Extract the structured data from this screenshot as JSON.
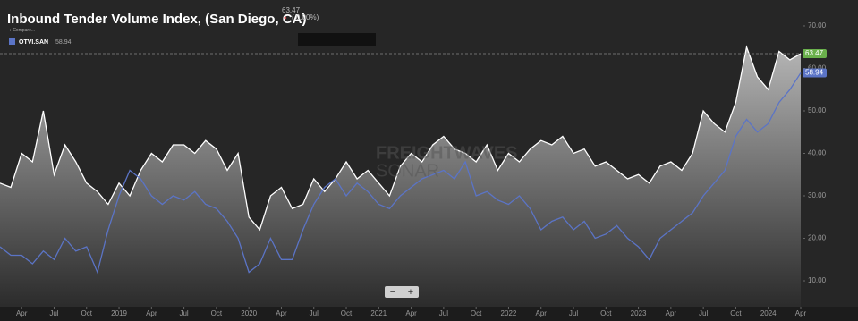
{
  "chart_data": {
    "type": "line",
    "title": "Inbound Tender Volume Index, (San Diego, CA)",
    "last_value_label": "63.47",
    "change_label": "( 0.00%)",
    "compare_label": "Compare...",
    "watermark": [
      "FREIGHTWAVES",
      "SONAR"
    ],
    "zoom_buttons": [
      "−",
      "+"
    ],
    "x": [
      "2018-02",
      "2018-03",
      "2018-04",
      "2018-05",
      "2018-06",
      "2018-07",
      "2018-08",
      "2018-09",
      "2018-10",
      "2018-11",
      "2018-12",
      "2019-01",
      "2019-02",
      "2019-03",
      "2019-04",
      "2019-05",
      "2019-06",
      "2019-07",
      "2019-08",
      "2019-09",
      "2019-10",
      "2019-11",
      "2019-12",
      "2020-01",
      "2020-02",
      "2020-03",
      "2020-04",
      "2020-05",
      "2020-06",
      "2020-07",
      "2020-08",
      "2020-09",
      "2020-10",
      "2020-11",
      "2020-12",
      "2021-01",
      "2021-02",
      "2021-03",
      "2021-04",
      "2021-05",
      "2021-06",
      "2021-07",
      "2021-08",
      "2021-09",
      "2021-10",
      "2021-11",
      "2021-12",
      "2022-01",
      "2022-02",
      "2022-03",
      "2022-04",
      "2022-05",
      "2022-06",
      "2022-07",
      "2022-08",
      "2022-09",
      "2022-10",
      "2022-11",
      "2022-12",
      "2023-01",
      "2023-02",
      "2023-03",
      "2023-04",
      "2023-05",
      "2023-06",
      "2023-07",
      "2023-08",
      "2023-09",
      "2023-10",
      "2023-11",
      "2023-12",
      "2024-01",
      "2024-02",
      "2024-03",
      "2024-04"
    ],
    "xlim": [
      "2018-02",
      "2024-04"
    ],
    "xticks": [
      {
        "value": "2018-04",
        "label": "Apr"
      },
      {
        "value": "2018-07",
        "label": "Jul"
      },
      {
        "value": "2018-10",
        "label": "Oct"
      },
      {
        "value": "2019-01",
        "label": "2019"
      },
      {
        "value": "2019-04",
        "label": "Apr"
      },
      {
        "value": "2019-07",
        "label": "Jul"
      },
      {
        "value": "2019-10",
        "label": "Oct"
      },
      {
        "value": "2020-01",
        "label": "2020"
      },
      {
        "value": "2020-04",
        "label": "Apr"
      },
      {
        "value": "2020-07",
        "label": "Jul"
      },
      {
        "value": "2020-10",
        "label": "Oct"
      },
      {
        "value": "2021-01",
        "label": "2021"
      },
      {
        "value": "2021-04",
        "label": "Apr"
      },
      {
        "value": "2021-07",
        "label": "Jul"
      },
      {
        "value": "2021-10",
        "label": "Oct"
      },
      {
        "value": "2022-01",
        "label": "2022"
      },
      {
        "value": "2022-04",
        "label": "Apr"
      },
      {
        "value": "2022-07",
        "label": "Jul"
      },
      {
        "value": "2022-10",
        "label": "Oct"
      },
      {
        "value": "2023-01",
        "label": "2023"
      },
      {
        "value": "2023-04",
        "label": "Apr"
      },
      {
        "value": "2023-07",
        "label": "Jul"
      },
      {
        "value": "2023-10",
        "label": "Oct"
      },
      {
        "value": "2024-01",
        "label": "2024"
      },
      {
        "value": "2024-04",
        "label": "Apr"
      }
    ],
    "ylim": [
      3.9,
      76.1
    ],
    "yticks": [
      {
        "value": 10,
        "label": "10.00"
      },
      {
        "value": 20,
        "label": "20.00"
      },
      {
        "value": 30,
        "label": "30.00"
      },
      {
        "value": 40,
        "label": "40.00"
      },
      {
        "value": 50,
        "label": "50.00"
      },
      {
        "value": 60,
        "label": "60.00"
      },
      {
        "value": 70,
        "label": "70.00"
      }
    ],
    "series": [
      {
        "color": "#ffffff",
        "label_color": "#6ab04c",
        "values": [
          33,
          32,
          40,
          38,
          50,
          35,
          42,
          38,
          33,
          31,
          28,
          33,
          30,
          36,
          40,
          38,
          42,
          42,
          40,
          43,
          41,
          36,
          40,
          25,
          22,
          30,
          32,
          27,
          28,
          34,
          31,
          34,
          38,
          34,
          36,
          33,
          30,
          37,
          40,
          38,
          42,
          44,
          41,
          40,
          38,
          42,
          36,
          40,
          38,
          41,
          43,
          42,
          44,
          40,
          41,
          37,
          38,
          36,
          34,
          35,
          33,
          37,
          38,
          36,
          40,
          50,
          47,
          45,
          52,
          65,
          58,
          55,
          64,
          62,
          63.47
        ]
      },
      {
        "name": "OTVI.SAN",
        "color": "#5b74c6",
        "label_color": "#5b74c6",
        "values": [
          18,
          16,
          16,
          14,
          17,
          15,
          20,
          17,
          18,
          12,
          22,
          30,
          36,
          34,
          30,
          28,
          30,
          29,
          31,
          28,
          27,
          24,
          20,
          12,
          14,
          20,
          15,
          15,
          22,
          28,
          32,
          34,
          30,
          33,
          31,
          28,
          27,
          30,
          32,
          34,
          35,
          36,
          34,
          38,
          30,
          31,
          29,
          28,
          30,
          27,
          22,
          24,
          25,
          22,
          24,
          20,
          21,
          23,
          20,
          18,
          15,
          20,
          22,
          24,
          26,
          30,
          33,
          36,
          44,
          48,
          45,
          47,
          52,
          55,
          58.94
        ]
      }
    ]
  }
}
